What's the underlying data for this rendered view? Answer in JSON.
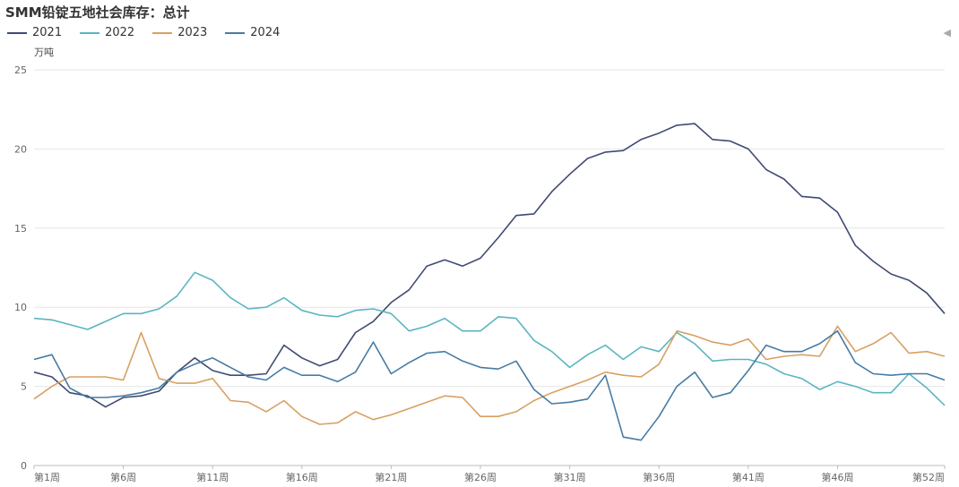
{
  "chart_data": {
    "type": "line",
    "title": "SMM铅锭五地社会库存：总计",
    "ylabel": "万吨",
    "ylim": [
      0,
      25
    ],
    "yticks": [
      0,
      5,
      10,
      15,
      20,
      25
    ],
    "grid": true,
    "legend_position": "top-left",
    "x_tick_labels": [
      "第1周",
      "第6周",
      "第11周",
      "第16周",
      "第21周",
      "第26周",
      "第31周",
      "第36周",
      "第41周",
      "第46周",
      "第52周"
    ],
    "x_tick_weeks": [
      1,
      6,
      11,
      16,
      21,
      26,
      31,
      36,
      41,
      46,
      52
    ],
    "series": [
      {
        "name": "2021",
        "color": "#3f4a74",
        "values": [
          5.9,
          5.6,
          4.6,
          4.4,
          3.7,
          4.3,
          4.4,
          4.7,
          5.9,
          6.8,
          6.0,
          5.7,
          5.7,
          5.8,
          7.6,
          6.8,
          6.3,
          6.7,
          8.4,
          9.1,
          10.3,
          11.1,
          12.6,
          13.0,
          12.6,
          13.1,
          14.4,
          15.8,
          15.9,
          17.3,
          18.4,
          19.4,
          19.8,
          19.9,
          20.6,
          21.0,
          21.5,
          21.6,
          20.6,
          20.5,
          20.0,
          18.7,
          18.1,
          17.0,
          16.9,
          16.0,
          13.9,
          12.9,
          12.1,
          11.7,
          10.9,
          9.6
        ]
      },
      {
        "name": "2022",
        "color": "#5ab5c2",
        "values": [
          9.3,
          9.2,
          8.9,
          8.6,
          9.1,
          9.6,
          9.6,
          9.9,
          10.7,
          12.2,
          11.7,
          10.6,
          9.9,
          10.0,
          10.6,
          9.8,
          9.5,
          9.4,
          9.8,
          9.9,
          9.6,
          8.5,
          8.8,
          9.3,
          8.5,
          8.5,
          9.4,
          9.3,
          7.9,
          7.2,
          6.2,
          7.0,
          7.6,
          6.7,
          7.5,
          7.2,
          8.4,
          7.7,
          6.6,
          6.7,
          6.7,
          6.4,
          5.8,
          5.5,
          4.8,
          5.3,
          5.0,
          4.6,
          4.6,
          5.8,
          4.9,
          3.8
        ]
      },
      {
        "name": "2023",
        "color": "#d8a061",
        "values": [
          4.2,
          5.0,
          5.6,
          5.6,
          5.6,
          5.4,
          8.4,
          5.5,
          5.2,
          5.2,
          5.5,
          4.1,
          4.0,
          3.4,
          4.1,
          3.1,
          2.6,
          2.7,
          3.4,
          2.9,
          3.2,
          3.6,
          4.0,
          4.4,
          4.3,
          3.1,
          3.1,
          3.4,
          4.1,
          4.6,
          5.0,
          5.4,
          5.9,
          5.7,
          5.6,
          6.4,
          8.5,
          8.2,
          7.8,
          7.6,
          8.0,
          6.7,
          6.9,
          7.0,
          6.9,
          8.8,
          7.2,
          7.7,
          8.4,
          7.1,
          7.2,
          6.9
        ]
      },
      {
        "name": "2024",
        "color": "#467ba4",
        "values": [
          6.7,
          7.0,
          4.9,
          4.3,
          4.3,
          4.4,
          4.6,
          4.9,
          5.9,
          6.4,
          6.8,
          6.2,
          5.6,
          5.4,
          6.2,
          5.7,
          5.7,
          5.3,
          5.9,
          7.8,
          5.8,
          6.5,
          7.1,
          7.2,
          6.6,
          6.2,
          6.1,
          6.6,
          4.8,
          3.9,
          4.0,
          4.2,
          5.7,
          1.8,
          1.6,
          3.1,
          5.0,
          5.9,
          4.3,
          4.6,
          6.0,
          7.6,
          7.2,
          7.2,
          7.7,
          8.5,
          6.5,
          5.8,
          5.7,
          5.8,
          5.8,
          5.4
        ]
      }
    ]
  }
}
